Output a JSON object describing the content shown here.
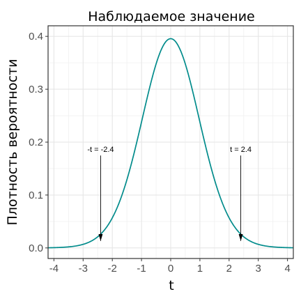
{
  "chart_data": {
    "type": "line",
    "title": "Наблюдаемое значение",
    "xlabel": "t",
    "ylabel": "Плотность вероятности",
    "xlim": [
      -4.2,
      4.2
    ],
    "ylim": [
      -0.02,
      0.42
    ],
    "x_ticks": [
      -4,
      -3,
      -2,
      -1,
      0,
      1,
      2,
      3,
      4
    ],
    "x_tick_labels": [
      "-4",
      "-3",
      "-2",
      "-1",
      "0",
      "1",
      "2",
      "3",
      "4"
    ],
    "y_ticks": [
      0.0,
      0.1,
      0.2,
      0.3,
      0.4
    ],
    "y_tick_labels": [
      "0.0",
      "0.1",
      "0.2",
      "0.3",
      "0.4"
    ],
    "grid": true,
    "line_color": "#008b8b",
    "distribution": "student-t",
    "degrees_of_freedom": 30,
    "series": [
      {
        "x": [
          -4.2,
          -4.0,
          -3.8,
          -3.6,
          -3.4,
          -3.2,
          -3.0,
          -2.8,
          -2.6,
          -2.4,
          -2.2,
          -2.0,
          -1.8,
          -1.6,
          -1.4,
          -1.2,
          -1.0,
          -0.8,
          -0.6,
          -0.4,
          -0.2,
          0.0,
          0.2,
          0.4,
          0.6,
          0.8,
          1.0,
          1.2,
          1.4,
          1.6,
          1.8,
          2.0,
          2.2,
          2.4,
          2.6,
          2.8,
          3.0,
          3.2,
          3.4,
          3.6,
          3.8,
          4.0,
          4.2
        ],
        "y": [
          0.0004,
          0.0005,
          0.0009,
          0.0014,
          0.0022,
          0.0034,
          0.0052,
          0.008,
          0.0118,
          0.0172,
          0.0247,
          0.0546,
          0.0793,
          0.1104,
          0.1475,
          0.1888,
          0.2359,
          0.2854,
          0.3306,
          0.3664,
          0.3889,
          0.3956,
          0.3889,
          0.3664,
          0.3306,
          0.2854,
          0.2359,
          0.1888,
          0.1475,
          0.1104,
          0.0793,
          0.0546,
          0.0247,
          0.0172,
          0.0118,
          0.008,
          0.0052,
          0.0034,
          0.0022,
          0.0014,
          0.0009,
          0.0005,
          0.0004
        ]
      }
    ],
    "annotations": [
      {
        "label": "-t = -2.4",
        "x": -2.4,
        "y_top": 0.18,
        "y_end": 0.0
      },
      {
        "label": "t = 2.4",
        "x": 2.4,
        "y_top": 0.18,
        "y_end": 0.0
      }
    ]
  }
}
